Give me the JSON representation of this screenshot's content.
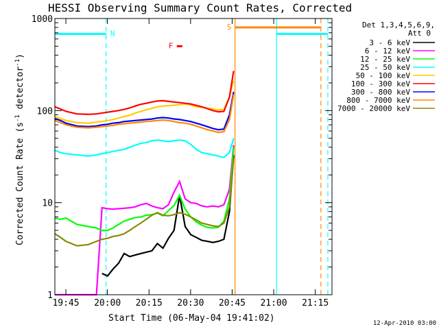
{
  "chart_data": {
    "type": "line",
    "title": "HESSI Observing Summary Count Rates, Corrected",
    "xlabel": "Start Time (06-May-04 19:41:02)",
    "ylabel": "Corrected Count Rate (s-1 detector-1)",
    "ylabel_main": "Corrected Count Rate (s",
    "ylabel_sup1": "-1",
    "ylabel_mid": " detector",
    "ylabel_sup2": "-1",
    "ylabel_end": ")",
    "footer": "12-Apr-2010 03:00",
    "x_unit": "minutes after 19:41:02",
    "xlim": [
      0,
      100
    ],
    "ylim": [
      1,
      1000
    ],
    "yscale": "log",
    "x_ticks": [
      {
        "label": "19:45",
        "value": 3.97
      },
      {
        "label": "20:00",
        "value": 18.97
      },
      {
        "label": "20:15",
        "value": 33.97
      },
      {
        "label": "20:30",
        "value": 48.97
      },
      {
        "label": "20:45",
        "value": 63.97
      },
      {
        "label": "21:00",
        "value": 78.97
      },
      {
        "label": "21:15",
        "value": 93.97
      }
    ],
    "y_ticks": [
      {
        "label": "1",
        "value": 1
      },
      {
        "label": "10",
        "value": 10
      },
      {
        "label": "100",
        "value": 100
      },
      {
        "label": "1000",
        "value": 1000
      }
    ],
    "legend": {
      "placement": "right",
      "title_line1": "Det 1,3,4,5,6,9,",
      "title_line2": "Att 0"
    },
    "series": [
      {
        "name": "3 - 6 keV",
        "color": "#000000",
        "x": [
          0,
          2,
          4,
          8,
          12,
          15,
          17,
          19,
          21,
          23,
          25,
          27,
          29,
          31,
          33,
          35,
          37,
          39,
          41,
          43,
          45,
          47,
          49,
          51,
          53,
          55,
          57,
          59,
          61,
          63,
          64.5
        ],
        "y": [
          null,
          null,
          null,
          null,
          null,
          null,
          1.7,
          1.6,
          1.9,
          2.2,
          2.8,
          2.6,
          2.7,
          2.8,
          2.9,
          3.0,
          3.6,
          3.2,
          4.1,
          5.0,
          12,
          5.5,
          4.5,
          4.2,
          3.9,
          3.8,
          3.7,
          3.8,
          4.0,
          8,
          33
        ]
      },
      {
        "name": "6 - 12 keV",
        "color": "#ff00ff",
        "x": [
          0,
          2,
          4,
          8,
          12,
          15,
          17,
          19,
          21,
          23,
          25,
          27,
          29,
          31,
          33,
          35,
          37,
          39,
          41,
          43,
          45,
          47,
          49,
          51,
          53,
          55,
          57,
          59,
          61,
          63,
          64.5
        ],
        "y": [
          1,
          1,
          1,
          1,
          1,
          1,
          8.8,
          8.6,
          8.5,
          8.6,
          8.7,
          8.8,
          9.0,
          9.5,
          9.8,
          9.2,
          8.8,
          8.6,
          9.5,
          13,
          17,
          11,
          10,
          9.8,
          9.2,
          9.0,
          9.2,
          9.0,
          9.5,
          14,
          42
        ]
      },
      {
        "name": "12 - 25 keV",
        "color": "#00ff00",
        "x": [
          0,
          2,
          4,
          8,
          12,
          15,
          17,
          19,
          21,
          23,
          25,
          27,
          29,
          31,
          33,
          35,
          37,
          39,
          41,
          43,
          45,
          47,
          49,
          51,
          53,
          55,
          57,
          59,
          61,
          63,
          64.5
        ],
        "y": [
          6.8,
          6.6,
          6.8,
          5.8,
          5.5,
          5.3,
          5.0,
          5.0,
          5.3,
          5.8,
          6.3,
          6.6,
          6.9,
          7.0,
          7.3,
          7.4,
          7.7,
          7.2,
          8.2,
          9.3,
          12,
          8.5,
          7.0,
          6.2,
          5.7,
          5.4,
          5.3,
          5.4,
          6.3,
          11,
          40
        ]
      },
      {
        "name": "25 - 50 keV",
        "color": "#00ffff",
        "x": [
          0,
          2,
          4,
          8,
          12,
          15,
          17,
          19,
          21,
          23,
          25,
          27,
          29,
          31,
          33,
          35,
          37,
          39,
          41,
          43,
          45,
          47,
          49,
          51,
          53,
          55,
          57,
          59,
          61,
          63,
          64.5
        ],
        "y": [
          37,
          35,
          34,
          33,
          32,
          33,
          34,
          35,
          36,
          37,
          38,
          40,
          42,
          44,
          45,
          47,
          48,
          47,
          46,
          47,
          48,
          47,
          43,
          38,
          35,
          34,
          33,
          32,
          31,
          35,
          50
        ]
      },
      {
        "name": "50 - 100 keV",
        "color": "#ffcc00",
        "x": [
          0,
          2,
          4,
          8,
          12,
          15,
          17,
          19,
          21,
          23,
          25,
          27,
          29,
          31,
          33,
          35,
          37,
          39,
          41,
          43,
          45,
          47,
          49,
          51,
          53,
          55,
          57,
          59,
          61,
          63,
          64.5
        ],
        "y": [
          86,
          82,
          78,
          74,
          73,
          75,
          76,
          78,
          80,
          83,
          86,
          89,
          94,
          98,
          102,
          106,
          110,
          112,
          113,
          114,
          116,
          118,
          115,
          110,
          108,
          106,
          104,
          102,
          103,
          140,
          210
        ]
      },
      {
        "name": "100 - 300 keV",
        "color": "#ff0000",
        "x": [
          0,
          2,
          4,
          8,
          12,
          15,
          17,
          19,
          21,
          23,
          25,
          27,
          29,
          31,
          33,
          35,
          37,
          39,
          41,
          43,
          45,
          47,
          49,
          51,
          53,
          55,
          57,
          59,
          61,
          63,
          64.5
        ],
        "y": [
          110,
          104,
          98,
          92,
          91,
          92,
          94,
          96,
          98,
          100,
          103,
          107,
          112,
          117,
          120,
          124,
          127,
          128,
          126,
          124,
          122,
          120,
          118,
          114,
          110,
          105,
          100,
          97,
          98,
          140,
          270
        ]
      },
      {
        "name": "300 - 800 keV",
        "color": "#0000ff",
        "x": [
          0,
          2,
          4,
          8,
          12,
          15,
          17,
          19,
          21,
          23,
          25,
          27,
          29,
          31,
          33,
          35,
          37,
          39,
          41,
          43,
          45,
          47,
          49,
          51,
          53,
          55,
          57,
          59,
          61,
          63,
          64.5
        ],
        "y": [
          82,
          78,
          73,
          68,
          67,
          68,
          70,
          71,
          73,
          74,
          76,
          77,
          78,
          79,
          80,
          81,
          83,
          84,
          83,
          81,
          80,
          78,
          76,
          73,
          70,
          67,
          64,
          62,
          63,
          90,
          160
        ]
      },
      {
        "name": "800 - 7000 keV",
        "color": "#ff8800",
        "x": [
          0,
          2,
          4,
          8,
          12,
          15,
          17,
          19,
          21,
          23,
          25,
          27,
          29,
          31,
          33,
          35,
          37,
          39,
          41,
          43,
          45,
          47,
          49,
          51,
          53,
          55,
          57,
          59,
          61,
          63,
          64.5
        ],
        "y": [
          78,
          74,
          70,
          66,
          65,
          66,
          67,
          68,
          69,
          71,
          72,
          73,
          74,
          75,
          76,
          77,
          78,
          79,
          78,
          76,
          74,
          73,
          71,
          68,
          65,
          62,
          60,
          58,
          59,
          80,
          150
        ]
      },
      {
        "name": "7000 - 20000 keV",
        "color": "#888800",
        "x": [
          0,
          2,
          4,
          8,
          12,
          15,
          17,
          19,
          21,
          23,
          25,
          27,
          29,
          31,
          33,
          35,
          37,
          39,
          41,
          43,
          45,
          47,
          49,
          51,
          53,
          55,
          57,
          59,
          61,
          63,
          64.5
        ],
        "y": [
          4.6,
          4.2,
          3.8,
          3.4,
          3.5,
          3.8,
          4.0,
          4.1,
          4.3,
          4.4,
          4.6,
          5.0,
          5.5,
          6.0,
          6.6,
          7.3,
          7.8,
          7.3,
          7.2,
          7.4,
          7.8,
          7.5,
          7.0,
          6.5,
          6.0,
          5.8,
          5.6,
          5.5,
          6.0,
          9,
          30
        ]
      }
    ],
    "annotations": [
      {
        "label": "N",
        "color": "#00ffff",
        "x_start": 0,
        "x_end": 18.5,
        "y": 680
      },
      {
        "label": "F",
        "color": "#ff0000",
        "x_start": 44,
        "x_end": 46,
        "y": 500
      },
      {
        "label": "S",
        "color": "#ff8800",
        "x_start": 65,
        "x_end": 96,
        "y": 800
      }
    ],
    "vlines": [
      {
        "x": 18.5,
        "color": "#00ffff",
        "style": "dashed"
      },
      {
        "x": 65,
        "color": "#ff8800",
        "style": "solid"
      },
      {
        "x": 80,
        "color": "#00ffff",
        "style": "solid"
      },
      {
        "x": 96,
        "color": "#ff8800",
        "style": "dashed"
      },
      {
        "x": 98.5,
        "color": "#00ffff",
        "style": "dashed"
      }
    ],
    "extra_segments": [
      {
        "x_start": 80,
        "x_end": 98.5,
        "y": 680,
        "color": "#00ffff"
      }
    ]
  }
}
